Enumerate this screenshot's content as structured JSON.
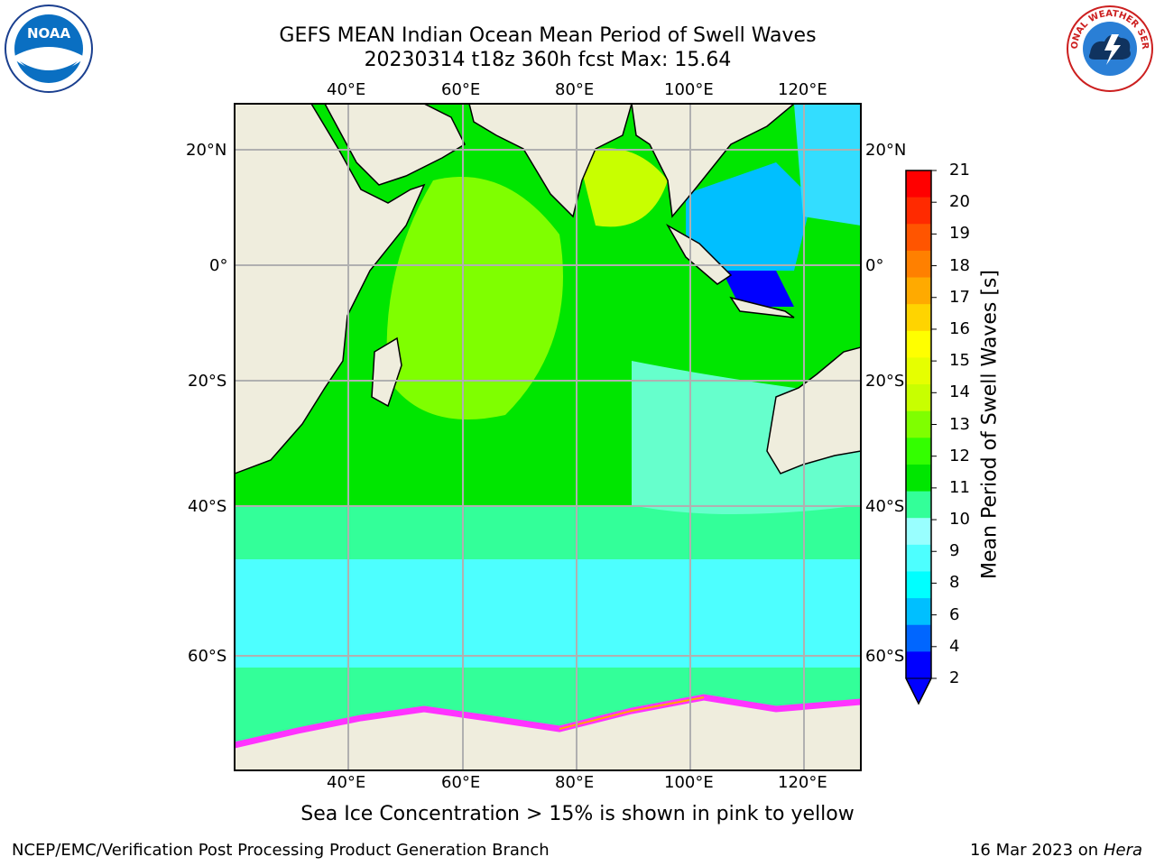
{
  "header": {
    "title_line1": "GEFS MEAN Indian Ocean Mean Period of Swell Waves",
    "title_line2": "20230314 t18z 360h fcst   Max: 15.64"
  },
  "map": {
    "lon_labels": [
      "40°E",
      "60°E",
      "80°E",
      "100°E",
      "120°E"
    ],
    "lat_labels_left": [
      "20°N",
      "0°",
      "20°S",
      "40°S",
      "60°S"
    ],
    "lat_labels_right": [
      "20°N",
      "0°",
      "20°S",
      "40°S",
      "60°S"
    ],
    "colors": {
      "land": "#efeddd",
      "sea_ice": "#ff33ff",
      "grid": "#b0b0b0"
    }
  },
  "colorbar": {
    "label": "Mean Period of Swell Waves [s]",
    "ticks": [
      "21",
      "20",
      "19",
      "18",
      "17",
      "16",
      "15",
      "14",
      "13",
      "12",
      "11",
      "10",
      "9",
      "8",
      "6",
      "4",
      "2"
    ],
    "colors": [
      "#ff0000",
      "#ff2a00",
      "#ff5500",
      "#ff8000",
      "#ffaa00",
      "#ffd400",
      "#ffff00",
      "#e6ff00",
      "#c8ff00",
      "#7fff00",
      "#33ff00",
      "#00e600",
      "#33ff99",
      "#99ffff",
      "#4dffff",
      "#00ffff",
      "#00bfff",
      "#0066ff",
      "#0000ff"
    ]
  },
  "note": "Sea Ice Concentration > 15% is shown in pink to yellow",
  "footer": {
    "left": "NCEP/EMC/Verification Post Processing Product Generation Branch",
    "right_date": "16 Mar 2023 on",
    "right_machine": "Hera"
  },
  "logos": {
    "noaa_text": "NOAA",
    "nws_text": "NATIONAL WEATHER SERVICE"
  }
}
